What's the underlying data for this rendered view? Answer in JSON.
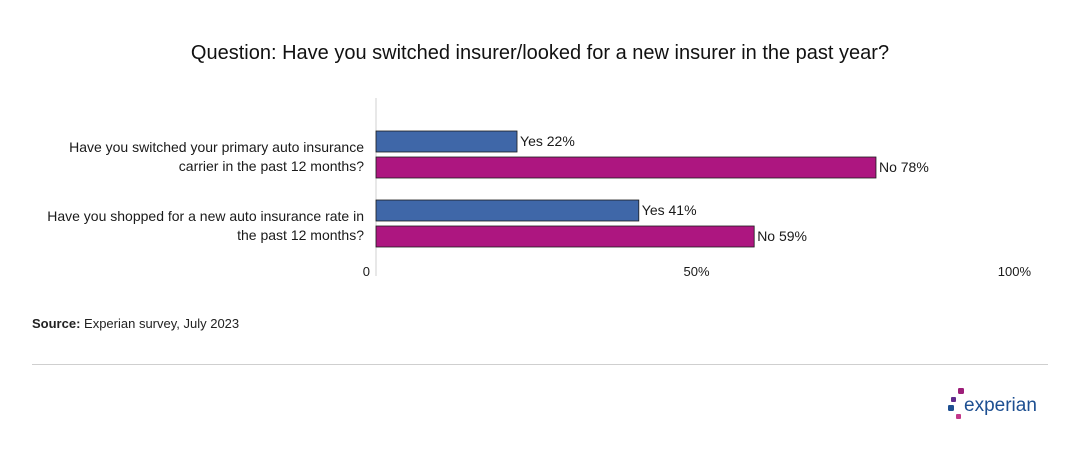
{
  "header": {
    "title": "Question: Have you switched insurer/looked for a new insurer in the past year?"
  },
  "chart_data": {
    "type": "bar",
    "orientation": "horizontal",
    "categories": [
      [
        "Have you switched your primary auto insurance",
        "carrier in the past 12 months?"
      ],
      [
        "Have you shopped for a new auto insurance rate in",
        "the past 12 months?"
      ]
    ],
    "series": [
      {
        "name": "Yes",
        "values": [
          22,
          41
        ],
        "color": "#3f67a8"
      },
      {
        "name": "No",
        "values": [
          78,
          59
        ],
        "color": "#ad1680"
      }
    ],
    "data_labels": [
      [
        "Yes 22%",
        "Yes 41%"
      ],
      [
        "No 78%",
        "No 59%"
      ]
    ],
    "x_ticks": [
      {
        "value": 0,
        "label": "0"
      },
      {
        "value": 50,
        "label": "50%"
      },
      {
        "value": 100,
        "label": "100%"
      }
    ],
    "xlim": [
      0,
      100
    ],
    "grid": false,
    "legend": "none"
  },
  "footer": {
    "source_label": "Source:",
    "source_text": " Experian survey, July 2023",
    "logo_text": "experian",
    "logo_colors": [
      "#9d1e79",
      "#5f2b8c",
      "#1d4f91",
      "#c3378a"
    ]
  }
}
